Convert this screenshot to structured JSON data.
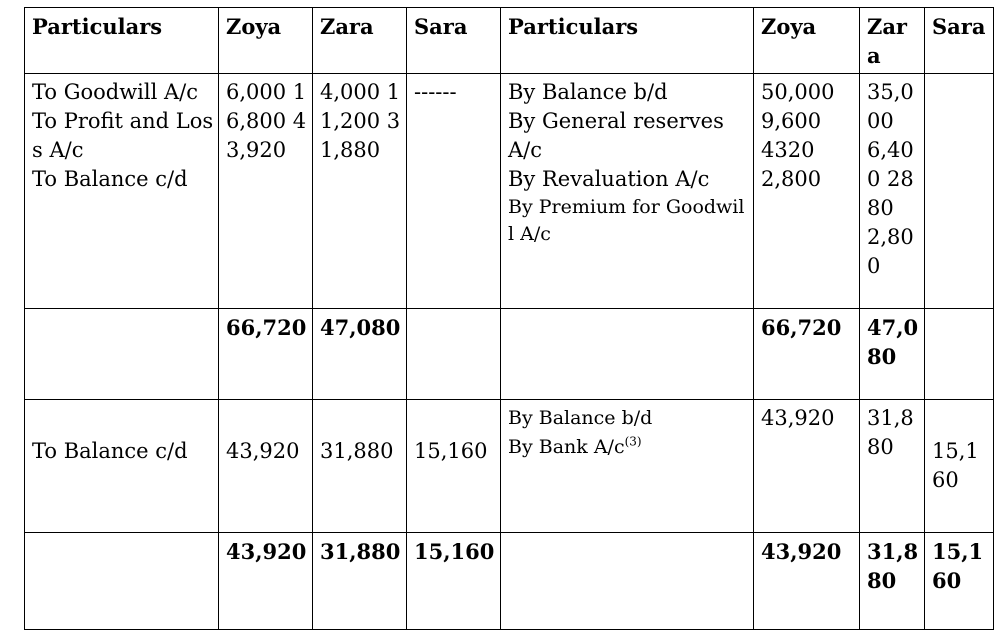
{
  "header": {
    "particulars_left": "Particulars",
    "zoya_left": "Zoya",
    "zara_left": "Zara",
    "sara_left": "Sara",
    "particulars_right": "Particulars",
    "zoya_right": "Zoya",
    "zara_right": "Zara",
    "sara_right": "Sara"
  },
  "row1": {
    "left_particulars": [
      "To Goodwill A/c",
      "To Profit and Loss A/c",
      "To Balance c/d"
    ],
    "left_zoya": "6,000 16,800 43,920",
    "left_zara": "4,000 11,200 31,880",
    "left_sara": "------",
    "right_particulars": [
      "By Balance b/d",
      "By General reserves A/c",
      "By Revaluation A/c",
      "By Premium for Goodwill A/c"
    ],
    "right_zoya": [
      "50,000",
      "9,600",
      "4320",
      "2,800"
    ],
    "right_zara": "35,000 6,400 2880 2,800",
    "right_sara": ""
  },
  "row2": {
    "left_zoya_total": "66,720",
    "left_zara_total": "47,080",
    "right_zoya_total": "66,720",
    "right_zara_total": "47,080"
  },
  "row3": {
    "left_particulars": "To Balance c/d",
    "left_zoya": "43,920",
    "left_zara": "31,880",
    "left_sara": "15,160",
    "right_particulars": [
      "By Balance b/d",
      "By Bank A/c"
    ],
    "right_particulars_sup": "(3)",
    "right_zoya": "43,920",
    "right_zara": "31,880",
    "right_sara": "15,160"
  },
  "row4": {
    "left_zoya_total": "43,920",
    "left_zara_total": "31,880",
    "left_sara_total": "15,160",
    "right_zoya_total": "43,920",
    "right_zara_total": "31,880",
    "right_sara_total": "15,160"
  }
}
